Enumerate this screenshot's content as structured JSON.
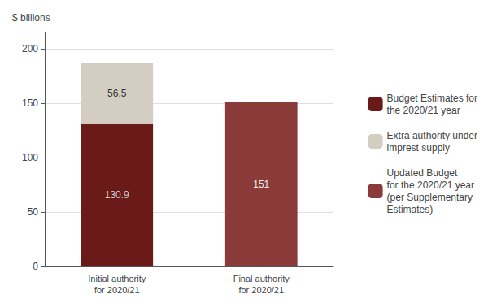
{
  "chart_data": {
    "type": "bar",
    "y_label": "$ billions",
    "categories": [
      "Initial authority\nfor 2020/21",
      "Final authority\nfor 2020/21"
    ],
    "series": [
      {
        "name": "Budget Estimates for\nthe 2020/21 year",
        "color": "#6B1A1A",
        "values": [
          130.9,
          null
        ]
      },
      {
        "name": "Extra authority under\nimprest supply",
        "color": "#D4CDC2",
        "values": [
          56.5,
          null
        ]
      },
      {
        "name": "Updated Budget\nfor the 2020/21 year\n(per Supplementary\nEstimates)",
        "color": "#8B3A3A",
        "values": [
          null,
          151
        ]
      }
    ],
    "stacked": true,
    "data_labels": true,
    "ylim": [
      0,
      215
    ],
    "yticks": [
      0,
      50,
      100,
      150,
      200
    ],
    "grid": true,
    "legend": "right"
  }
}
